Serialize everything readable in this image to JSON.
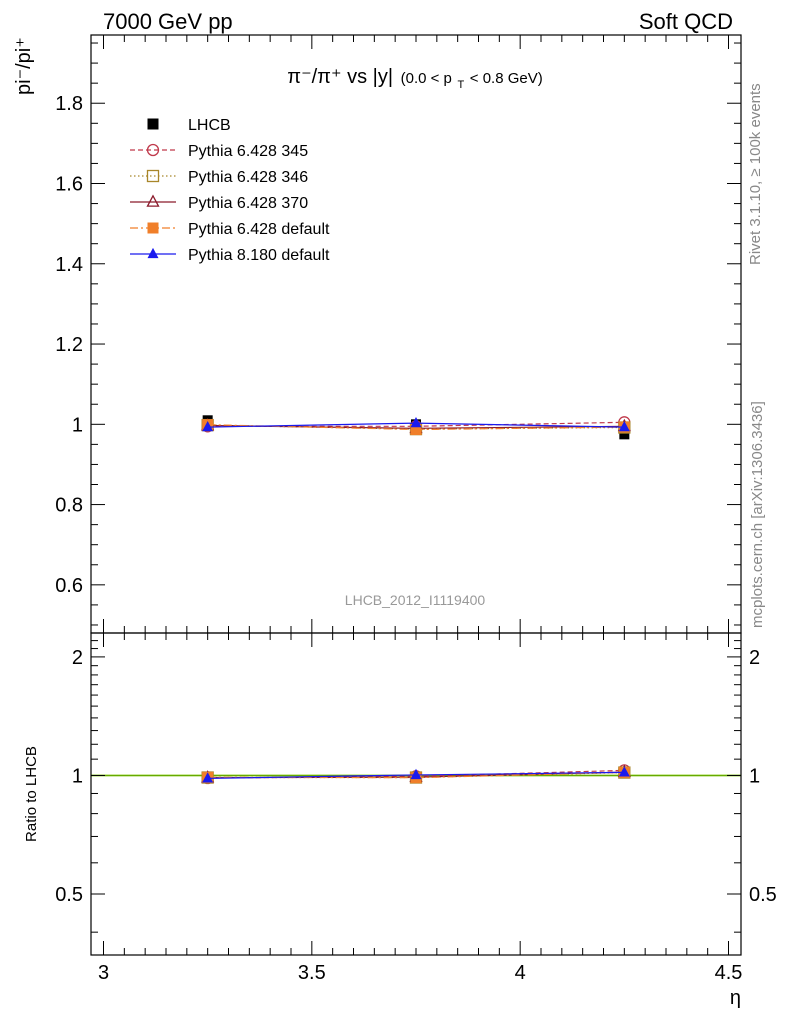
{
  "header": {
    "left": "7000 GeV pp",
    "right": "Soft QCD"
  },
  "side_text": {
    "rivet": "Rivet 3.1.10, ≥ 100k events",
    "mcplots": "mcplots.cern.ch [arXiv:1306.3436]"
  },
  "watermark": "LHCB_2012_I1119400",
  "colors": {
    "lhcb": "#000000",
    "p345": "#c0394b",
    "p346": "#a8862a",
    "p370": "#8b1a2b",
    "p6def": "#f07f2a",
    "p8def": "#1a1aee",
    "band": "#ccff66",
    "band_line": "#66aa00"
  },
  "chart_data": [
    {
      "type": "line",
      "panel": "main",
      "title_parts": {
        "main": "π⁻/π⁺ vs |y|",
        "cut_open": "(0.0 < p",
        "cut_sub": "T",
        "cut_close": " < 0.8 GeV)"
      },
      "ylabel": "pi⁻/pi⁺",
      "xlim": [
        2.97,
        4.53
      ],
      "ylim": [
        0.48,
        1.97
      ],
      "yticks": [
        0.6,
        0.8,
        1.0,
        1.2,
        1.4,
        1.6,
        1.8
      ],
      "ytick_labels": [
        "0.6",
        "0.8",
        "1",
        "1.2",
        "1.4",
        "1.6",
        "1.8"
      ],
      "legend_position": "top-left",
      "x": [
        3.25,
        3.75,
        4.25
      ],
      "series": [
        {
          "name": "LHCB",
          "key": "lhcb",
          "values": [
            1.01,
            1.0,
            0.975
          ],
          "style": "data"
        },
        {
          "name": "Pythia 6.428 345",
          "key": "p345",
          "values": [
            0.995,
            0.995,
            1.005
          ],
          "style": "dashed-circle"
        },
        {
          "name": "Pythia 6.428 346",
          "key": "p346",
          "values": [
            0.998,
            0.988,
            0.992
          ],
          "style": "dotted-square"
        },
        {
          "name": "Pythia 6.428 370",
          "key": "p370",
          "values": [
            0.997,
            0.99,
            0.995
          ],
          "style": "solid-triangle-open"
        },
        {
          "name": "Pythia 6.428 default",
          "key": "p6def",
          "values": [
            0.999,
            0.987,
            0.993
          ],
          "style": "dashdot-square-filled"
        },
        {
          "name": "Pythia 8.180 default",
          "key": "p8def",
          "values": [
            0.993,
            1.003,
            0.993
          ],
          "style": "solid-triangle-filled"
        }
      ]
    },
    {
      "type": "line",
      "panel": "ratio",
      "ylabel": "Ratio to LHCB",
      "xlabel": "η",
      "xlim": [
        2.97,
        4.53
      ],
      "xticks": [
        3,
        3.5,
        4,
        4.5
      ],
      "xtick_labels": [
        "3",
        "3.5",
        "4",
        "4.5"
      ],
      "ylim": [
        0.35,
        2.3
      ],
      "yticks": [
        0.5,
        1,
        2
      ],
      "ytick_labels": [
        "0.5",
        "1",
        "2"
      ],
      "x": [
        3.25,
        3.75,
        4.25
      ],
      "series": [
        {
          "key": "p345",
          "values": [
            0.985,
            0.995,
            1.03
          ]
        },
        {
          "key": "p346",
          "values": [
            0.988,
            0.988,
            1.017
          ]
        },
        {
          "key": "p370",
          "values": [
            0.987,
            0.99,
            1.02
          ]
        },
        {
          "key": "p6def",
          "values": [
            0.989,
            0.987,
            1.018
          ]
        },
        {
          "key": "p8def",
          "values": [
            0.983,
            1.003,
            1.018
          ]
        }
      ]
    }
  ]
}
